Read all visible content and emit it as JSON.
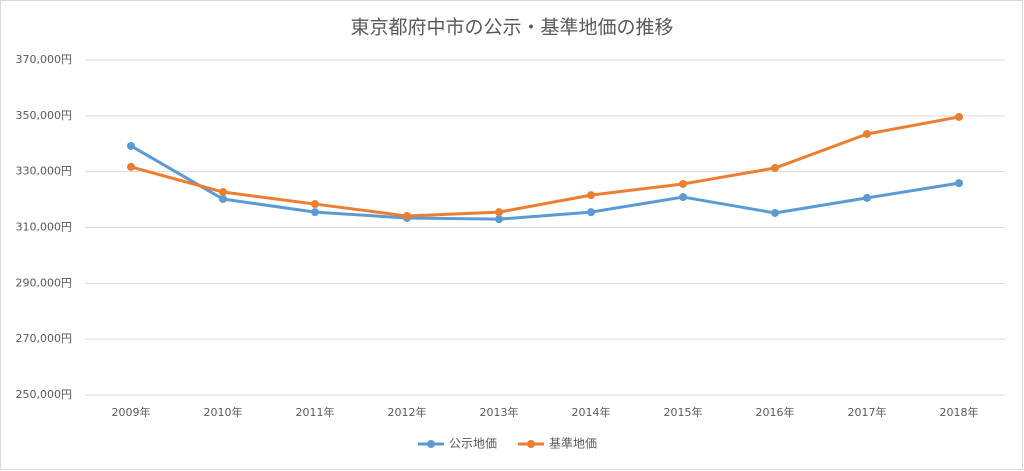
{
  "chart_data": {
    "type": "line",
    "title": "東京都府中市の公示・基準地価の推移",
    "categories": [
      "2009年",
      "2010年",
      "2011年",
      "2012年",
      "2013年",
      "2014年",
      "2015年",
      "2016年",
      "2017年",
      "2018年"
    ],
    "series": [
      {
        "name": "公示地価",
        "color": "#5b9bd5",
        "values": [
          339200,
          320200,
          315500,
          313400,
          313000,
          315500,
          320900,
          315200,
          320600,
          325900
        ]
      },
      {
        "name": "基準地価",
        "color": "#ed7d31",
        "values": [
          331700,
          322700,
          318400,
          314100,
          315500,
          321600,
          325600,
          331300,
          343500,
          349600
        ]
      }
    ],
    "ylim": [
      250000,
      370000
    ],
    "yticks": [
      {
        "value": 250000,
        "label": "250,000円"
      },
      {
        "value": 270000,
        "label": "270,000円"
      },
      {
        "value": 290000,
        "label": "290,000円"
      },
      {
        "value": 310000,
        "label": "310,000円"
      },
      {
        "value": 330000,
        "label": "330,000円"
      },
      {
        "value": 350000,
        "label": "350,000円"
      },
      {
        "value": 370000,
        "label": "370,000円"
      }
    ],
    "grid": true,
    "legend": "bottom"
  }
}
